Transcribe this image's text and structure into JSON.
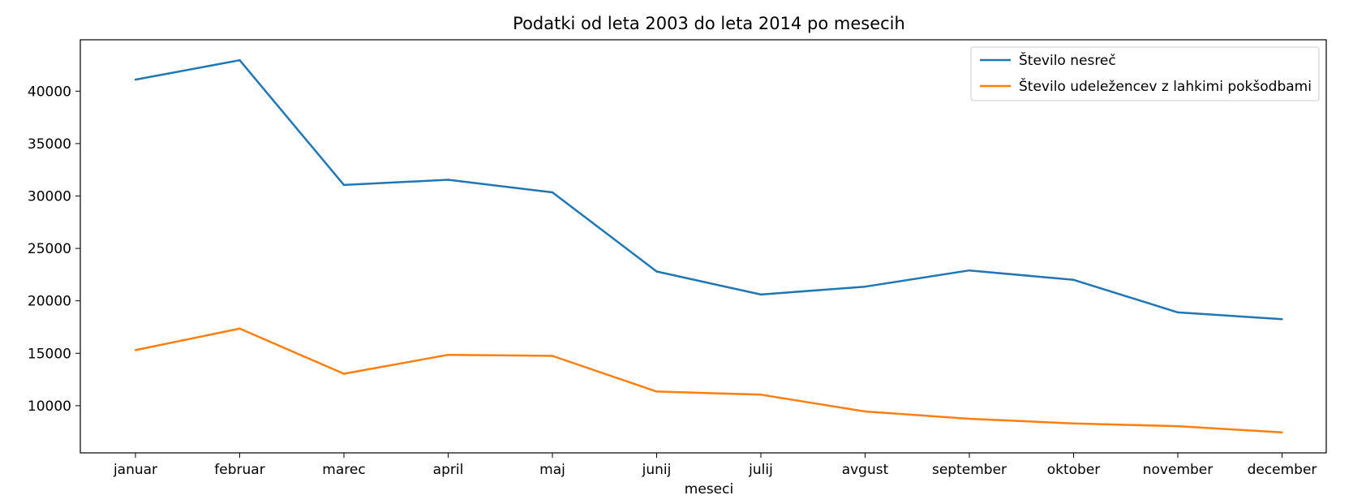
{
  "chart_data": {
    "type": "line",
    "title": "Podatki od leta 2003 do leta 2014 po mesecih",
    "xlabel": "meseci",
    "ylabel": "",
    "categories": [
      "januar",
      "februar",
      "marec",
      "april",
      "maj",
      "junij",
      "julij",
      "avgust",
      "september",
      "oktober",
      "november",
      "december"
    ],
    "ylim": [
      5500,
      44900
    ],
    "yticks": [
      10000,
      15000,
      20000,
      25000,
      30000,
      35000,
      40000
    ],
    "grid": false,
    "legend_position": "top-right",
    "series": [
      {
        "name": "Število nesreč",
        "color": "#1f77b4",
        "values": [
          41100,
          42950,
          31050,
          31550,
          30350,
          22800,
          20600,
          21350,
          22900,
          22000,
          18900,
          18250
        ]
      },
      {
        "name": "Število udeležencev z lahkimi pokšodbami",
        "color": "#ff7f0e",
        "values": [
          15300,
          17350,
          13050,
          14850,
          14750,
          11350,
          11050,
          9450,
          8750,
          8300,
          8050,
          7450
        ]
      }
    ]
  }
}
